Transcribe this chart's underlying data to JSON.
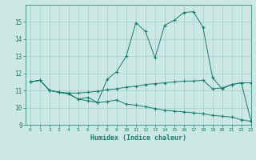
{
  "title": "",
  "xlabel": "Humidex (Indice chaleur)",
  "xlim": [
    -0.5,
    23
  ],
  "ylim": [
    9,
    16
  ],
  "yticks": [
    9,
    10,
    11,
    12,
    13,
    14,
    15
  ],
  "xticks": [
    0,
    1,
    2,
    3,
    4,
    5,
    6,
    7,
    8,
    9,
    10,
    11,
    12,
    13,
    14,
    15,
    16,
    17,
    18,
    19,
    20,
    21,
    22,
    23
  ],
  "bg_color": "#cce8e4",
  "grid_color": "#aacccc",
  "line_color": "#1a7a6e",
  "line1_x": [
    0,
    1,
    2,
    3,
    4,
    5,
    6,
    7,
    8,
    9,
    10,
    11,
    12,
    13,
    14,
    15,
    16,
    17,
    18,
    19,
    20,
    21,
    22,
    23
  ],
  "line1_y": [
    11.5,
    11.6,
    11.0,
    10.9,
    10.8,
    10.5,
    10.4,
    10.3,
    10.35,
    10.45,
    10.2,
    10.15,
    10.05,
    9.95,
    9.85,
    9.8,
    9.75,
    9.7,
    9.65,
    9.55,
    9.5,
    9.45,
    9.3,
    9.2
  ],
  "line2_x": [
    0,
    1,
    2,
    3,
    4,
    5,
    6,
    7,
    8,
    9,
    10,
    11,
    12,
    13,
    14,
    15,
    16,
    17,
    18,
    19,
    20,
    21,
    22,
    23
  ],
  "line2_y": [
    11.5,
    11.6,
    11.0,
    10.9,
    10.85,
    10.85,
    10.9,
    10.95,
    11.05,
    11.1,
    11.2,
    11.25,
    11.35,
    11.4,
    11.45,
    11.5,
    11.55,
    11.55,
    11.6,
    11.1,
    11.15,
    11.35,
    11.45,
    11.45
  ],
  "line3_x": [
    0,
    1,
    2,
    3,
    4,
    5,
    6,
    7,
    8,
    9,
    10,
    11,
    12,
    13,
    14,
    15,
    16,
    17,
    18,
    19,
    20,
    21,
    22,
    23
  ],
  "line3_y": [
    11.5,
    11.6,
    11.0,
    10.9,
    10.8,
    10.5,
    10.6,
    10.3,
    11.65,
    12.1,
    13.0,
    14.95,
    14.45,
    12.9,
    14.8,
    15.1,
    15.55,
    15.6,
    14.7,
    11.75,
    11.1,
    11.35,
    11.45,
    9.25
  ]
}
